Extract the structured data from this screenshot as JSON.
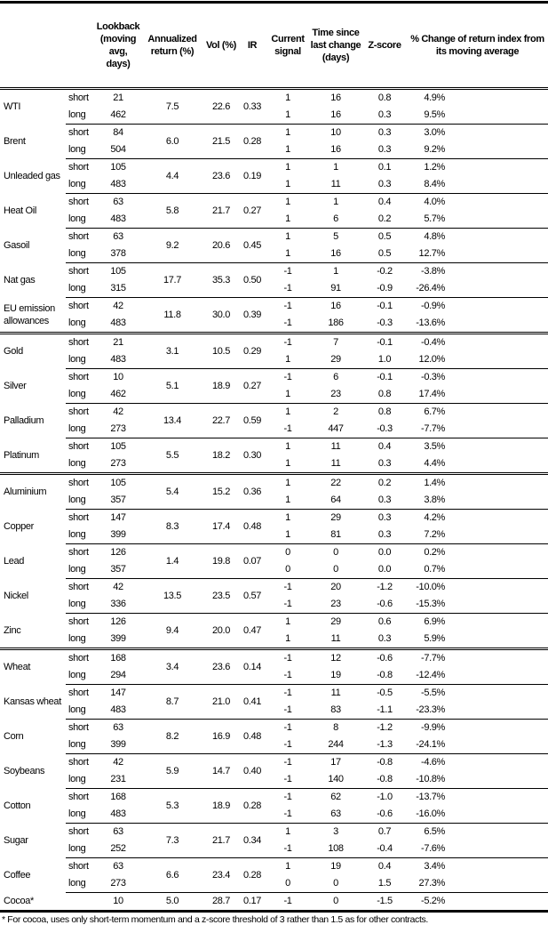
{
  "headers": [
    "",
    "",
    "Lookback (moving avg, days)",
    "Annualized return (%)",
    "Vol (%)",
    "IR",
    "Current signal",
    "Time since last change (days)",
    "Z-score",
    "% Change of return index from its moving average"
  ],
  "groups": [
    [
      {
        "name": "WTI",
        "ann": "7.5",
        "vol": "22.6",
        "ir": "0.33",
        "rows": [
          [
            "short",
            "21",
            "1",
            "16",
            "0.8",
            "4.9%"
          ],
          [
            "long",
            "462",
            "1",
            "16",
            "0.3",
            "9.5%"
          ]
        ]
      },
      {
        "name": "Brent",
        "ann": "6.0",
        "vol": "21.5",
        "ir": "0.28",
        "rows": [
          [
            "short",
            "84",
            "1",
            "10",
            "0.3",
            "3.0%"
          ],
          [
            "long",
            "504",
            "1",
            "16",
            "0.3",
            "9.2%"
          ]
        ]
      },
      {
        "name": "Unleaded gas",
        "ann": "4.4",
        "vol": "23.6",
        "ir": "0.19",
        "rows": [
          [
            "short",
            "105",
            "1",
            "1",
            "0.1",
            "1.2%"
          ],
          [
            "long",
            "483",
            "1",
            "11",
            "0.3",
            "8.4%"
          ]
        ]
      },
      {
        "name": "Heat Oil",
        "ann": "5.8",
        "vol": "21.7",
        "ir": "0.27",
        "rows": [
          [
            "short",
            "63",
            "1",
            "1",
            "0.4",
            "4.0%"
          ],
          [
            "long",
            "483",
            "1",
            "6",
            "0.2",
            "5.7%"
          ]
        ]
      },
      {
        "name": "Gasoil",
        "ann": "9.2",
        "vol": "20.6",
        "ir": "0.45",
        "rows": [
          [
            "short",
            "63",
            "1",
            "5",
            "0.5",
            "4.8%"
          ],
          [
            "long",
            "378",
            "1",
            "16",
            "0.5",
            "12.7%"
          ]
        ]
      },
      {
        "name": "Nat gas",
        "ann": "17.7",
        "vol": "35.3",
        "ir": "0.50",
        "rows": [
          [
            "short",
            "105",
            "-1",
            "1",
            "-0.2",
            "-3.8%"
          ],
          [
            "long",
            "315",
            "-1",
            "91",
            "-0.9",
            "-26.4%"
          ]
        ]
      },
      {
        "name": "EU emission allowances",
        "ann": "11.8",
        "vol": "30.0",
        "ir": "0.39",
        "rows": [
          [
            "short",
            "42",
            "-1",
            "16",
            "-0.1",
            "-0.9%"
          ],
          [
            "long",
            "483",
            "-1",
            "186",
            "-0.3",
            "-13.6%"
          ]
        ]
      }
    ],
    [
      {
        "name": "Gold",
        "ann": "3.1",
        "vol": "10.5",
        "ir": "0.29",
        "rows": [
          [
            "short",
            "21",
            "-1",
            "7",
            "-0.1",
            "-0.4%"
          ],
          [
            "long",
            "483",
            "1",
            "29",
            "1.0",
            "12.0%"
          ]
        ]
      },
      {
        "name": "Silver",
        "ann": "5.1",
        "vol": "18.9",
        "ir": "0.27",
        "rows": [
          [
            "short",
            "10",
            "-1",
            "6",
            "-0.1",
            "-0.3%"
          ],
          [
            "long",
            "462",
            "1",
            "23",
            "0.8",
            "17.4%"
          ]
        ]
      },
      {
        "name": "Palladium",
        "ann": "13.4",
        "vol": "22.7",
        "ir": "0.59",
        "rows": [
          [
            "short",
            "42",
            "1",
            "2",
            "0.8",
            "6.7%"
          ],
          [
            "long",
            "273",
            "-1",
            "447",
            "-0.3",
            "-7.7%"
          ]
        ]
      },
      {
        "name": "Platinum",
        "ann": "5.5",
        "vol": "18.2",
        "ir": "0.30",
        "rows": [
          [
            "short",
            "105",
            "1",
            "11",
            "0.4",
            "3.5%"
          ],
          [
            "long",
            "273",
            "1",
            "11",
            "0.3",
            "4.4%"
          ]
        ]
      }
    ],
    [
      {
        "name": "Aluminium",
        "ann": "5.4",
        "vol": "15.2",
        "ir": "0.36",
        "rows": [
          [
            "short",
            "105",
            "1",
            "22",
            "0.2",
            "1.4%"
          ],
          [
            "long",
            "357",
            "1",
            "64",
            "0.3",
            "3.8%"
          ]
        ]
      },
      {
        "name": "Copper",
        "ann": "8.3",
        "vol": "17.4",
        "ir": "0.48",
        "rows": [
          [
            "short",
            "147",
            "1",
            "29",
            "0.3",
            "4.2%"
          ],
          [
            "long",
            "399",
            "1",
            "81",
            "0.3",
            "7.2%"
          ]
        ]
      },
      {
        "name": "Lead",
        "ann": "1.4",
        "vol": "19.8",
        "ir": "0.07",
        "rows": [
          [
            "short",
            "126",
            "0",
            "0",
            "0.0",
            "0.2%"
          ],
          [
            "long",
            "357",
            "0",
            "0",
            "0.0",
            "0.7%"
          ]
        ]
      },
      {
        "name": "Nickel",
        "ann": "13.5",
        "vol": "23.5",
        "ir": "0.57",
        "rows": [
          [
            "short",
            "42",
            "-1",
            "20",
            "-1.2",
            "-10.0%"
          ],
          [
            "long",
            "336",
            "-1",
            "23",
            "-0.6",
            "-15.3%"
          ]
        ]
      },
      {
        "name": "Zinc",
        "ann": "9.4",
        "vol": "20.0",
        "ir": "0.47",
        "rows": [
          [
            "short",
            "126",
            "1",
            "29",
            "0.6",
            "6.9%"
          ],
          [
            "long",
            "399",
            "1",
            "11",
            "0.3",
            "5.9%"
          ]
        ]
      }
    ],
    [
      {
        "name": "Wheat",
        "ann": "3.4",
        "vol": "23.6",
        "ir": "0.14",
        "rows": [
          [
            "short",
            "168",
            "-1",
            "12",
            "-0.6",
            "-7.7%"
          ],
          [
            "long",
            "294",
            "-1",
            "19",
            "-0.8",
            "-12.4%"
          ]
        ]
      },
      {
        "name": "Kansas wheat",
        "ann": "8.7",
        "vol": "21.0",
        "ir": "0.41",
        "rows": [
          [
            "short",
            "147",
            "-1",
            "11",
            "-0.5",
            "-5.5%"
          ],
          [
            "long",
            "483",
            "-1",
            "83",
            "-1.1",
            "-23.3%"
          ]
        ]
      },
      {
        "name": "Corn",
        "ann": "8.2",
        "vol": "16.9",
        "ir": "0.48",
        "rows": [
          [
            "short",
            "63",
            "-1",
            "8",
            "-1.2",
            "-9.9%"
          ],
          [
            "long",
            "399",
            "-1",
            "244",
            "-1.3",
            "-24.1%"
          ]
        ]
      },
      {
        "name": "Soybeans",
        "ann": "5.9",
        "vol": "14.7",
        "ir": "0.40",
        "rows": [
          [
            "short",
            "42",
            "-1",
            "17",
            "-0.8",
            "-4.6%"
          ],
          [
            "long",
            "231",
            "-1",
            "140",
            "-0.8",
            "-10.8%"
          ]
        ]
      },
      {
        "name": "Cotton",
        "ann": "5.3",
        "vol": "18.9",
        "ir": "0.28",
        "rows": [
          [
            "short",
            "168",
            "-1",
            "62",
            "-1.0",
            "-13.7%"
          ],
          [
            "long",
            "483",
            "-1",
            "63",
            "-0.6",
            "-16.0%"
          ]
        ]
      },
      {
        "name": "Sugar",
        "ann": "7.3",
        "vol": "21.7",
        "ir": "0.34",
        "rows": [
          [
            "short",
            "63",
            "1",
            "3",
            "0.7",
            "6.5%"
          ],
          [
            "long",
            "252",
            "-1",
            "108",
            "-0.4",
            "-7.6%"
          ]
        ]
      },
      {
        "name": "Coffee",
        "ann": "6.6",
        "vol": "23.4",
        "ir": "0.28",
        "rows": [
          [
            "short",
            "63",
            "1",
            "19",
            "0.4",
            "3.4%"
          ],
          [
            "long",
            "273",
            "0",
            "0",
            "1.5",
            "27.3%"
          ]
        ]
      },
      {
        "name": "Cocoa*",
        "ann": "5.0",
        "vol": "28.7",
        "ir": "0.17",
        "rows": [
          [
            "",
            "10",
            "-1",
            "0",
            "-1.5",
            "-5.2%"
          ]
        ]
      }
    ]
  ],
  "footnote": "* For cocoa, uses only short-term momentum and a z-score threshold of 3 rather than 1.5 as for other contracts."
}
